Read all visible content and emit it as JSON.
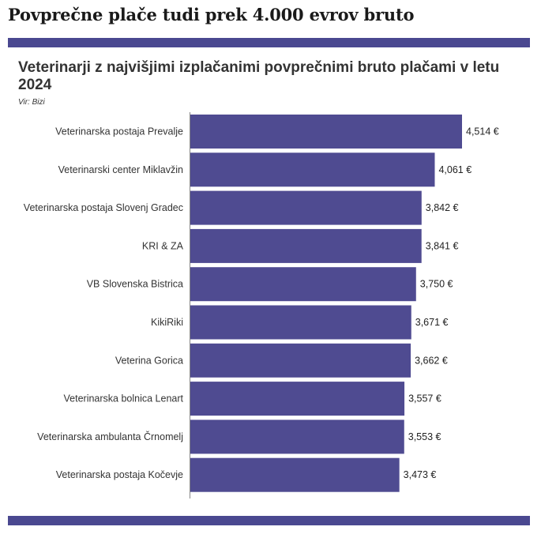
{
  "page": {
    "headline": "Povprečne plače tudi prek 4.000 evrov bruto"
  },
  "colors": {
    "bar": "#4f4b91",
    "band": "#4a4890"
  },
  "chart_data": {
    "type": "bar",
    "orientation": "horizontal",
    "title": "Veterinarji z najvišjimi izplačanimi povprečnimi bruto plačami v letu 2024",
    "source": "Vir: Bizi",
    "xlim": [
      0,
      4514
    ],
    "grid": false,
    "categories": [
      "Veterinarska postaja Prevalje",
      "Veterinarski center Miklavžin",
      "Veterinarska postaja Slovenj Gradec",
      "KRI & ZA",
      "VB Slovenska Bistrica",
      "KikiRiki",
      "Veterina Gorica",
      "Veterinarska bolnica Lenart",
      "Veterinarska ambulanta Črnomelj",
      "Veterinarska postaja Kočevje"
    ],
    "values": [
      4514,
      4061,
      3842,
      3841,
      3750,
      3671,
      3662,
      3557,
      3553,
      3473
    ],
    "value_labels": [
      "4,514 €",
      "4,061 €",
      "3,842 €",
      "3,841 €",
      "3,750 €",
      "3,671 €",
      "3,662 €",
      "3,557 €",
      "3,553 €",
      "3,473 €"
    ]
  }
}
